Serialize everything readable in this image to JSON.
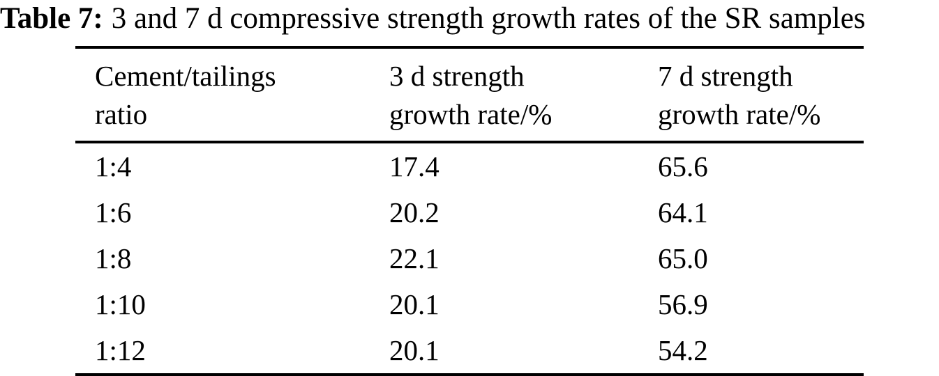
{
  "title": {
    "label": "Table 7:",
    "text": "3 and 7 d compressive strength growth rates of the SR samples"
  },
  "table": {
    "columns": [
      {
        "line1": "Cement/tailings",
        "line2": "ratio"
      },
      {
        "line1": "3 d strength",
        "line2": "growth rate/%"
      },
      {
        "line1": "7 d strength",
        "line2": "growth rate/%"
      }
    ],
    "rows": [
      {
        "ratio": "1:4",
        "rate3": "17.4",
        "rate7": "65.6"
      },
      {
        "ratio": "1:6",
        "rate3": "20.2",
        "rate7": "64.1"
      },
      {
        "ratio": "1:8",
        "rate3": "22.1",
        "rate7": "65.0"
      },
      {
        "ratio": "1:10",
        "rate3": "20.1",
        "rate7": "56.9"
      },
      {
        "ratio": "1:12",
        "rate3": "20.1",
        "rate7": "54.2"
      }
    ]
  },
  "colors": {
    "text": "#000000",
    "background": "#ffffff",
    "rule": "#000000"
  }
}
